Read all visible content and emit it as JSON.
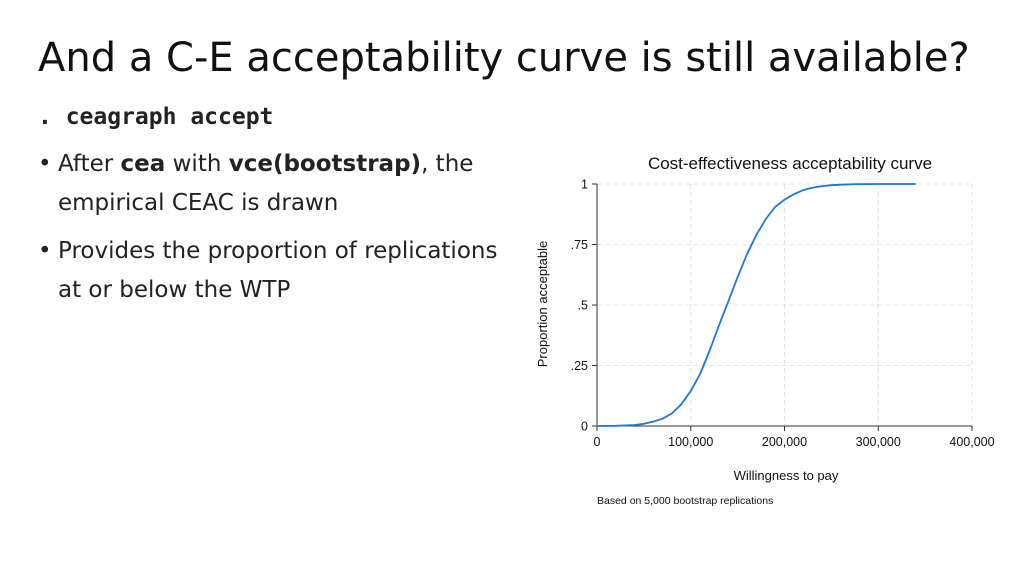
{
  "slide": {
    "title": "And a C-E acceptability curve is still available?",
    "command": ". ceagraph accept",
    "bullets": [
      {
        "segments": [
          {
            "text": "After ",
            "bold": false
          },
          {
            "text": "cea",
            "bold": true
          },
          {
            "text": " with ",
            "bold": false
          },
          {
            "text": "vce(bootstrap)",
            "bold": true
          },
          {
            "text": ", the empirical CEAC is drawn",
            "bold": false
          }
        ]
      },
      {
        "segments": [
          {
            "text": "Provides the proportion of replications at or below the WTP",
            "bold": false
          }
        ]
      }
    ]
  },
  "colors": {
    "line": "#1f78d1",
    "grid": "#e4e4e4",
    "axis": "#333333",
    "text": "#222222"
  },
  "chart_data": {
    "type": "line",
    "title": "Cost-effectiveness acceptability curve",
    "xlabel": "Willingness to pay",
    "ylabel": "Proportion acceptable",
    "note": "Based on 5,000 bootstrap replications",
    "xlim": [
      0,
      400000
    ],
    "ylim": [
      0,
      1
    ],
    "xticks": [
      0,
      100000,
      200000,
      300000,
      400000
    ],
    "xtick_labels": [
      "0",
      "100,000",
      "200,000",
      "300,000",
      "400,000"
    ],
    "yticks": [
      0,
      0.25,
      0.5,
      0.75,
      1
    ],
    "ytick_labels": [
      "0",
      ".25",
      ".5",
      ".75",
      "1"
    ],
    "grid": true,
    "legend": "none",
    "series": [
      {
        "x": [
          0,
          20000,
          40000,
          50000,
          60000,
          70000,
          80000,
          90000,
          100000,
          110000,
          120000,
          130000,
          140000,
          150000,
          160000,
          170000,
          180000,
          190000,
          200000,
          210000,
          220000,
          230000,
          240000,
          250000,
          260000,
          275000,
          300000,
          340000
        ],
        "y": [
          0,
          0.001,
          0.004,
          0.009,
          0.018,
          0.03,
          0.052,
          0.09,
          0.145,
          0.215,
          0.31,
          0.415,
          0.515,
          0.615,
          0.71,
          0.79,
          0.855,
          0.905,
          0.935,
          0.958,
          0.975,
          0.985,
          0.991,
          0.995,
          0.997,
          0.999,
          1.0,
          1.0
        ]
      }
    ]
  }
}
